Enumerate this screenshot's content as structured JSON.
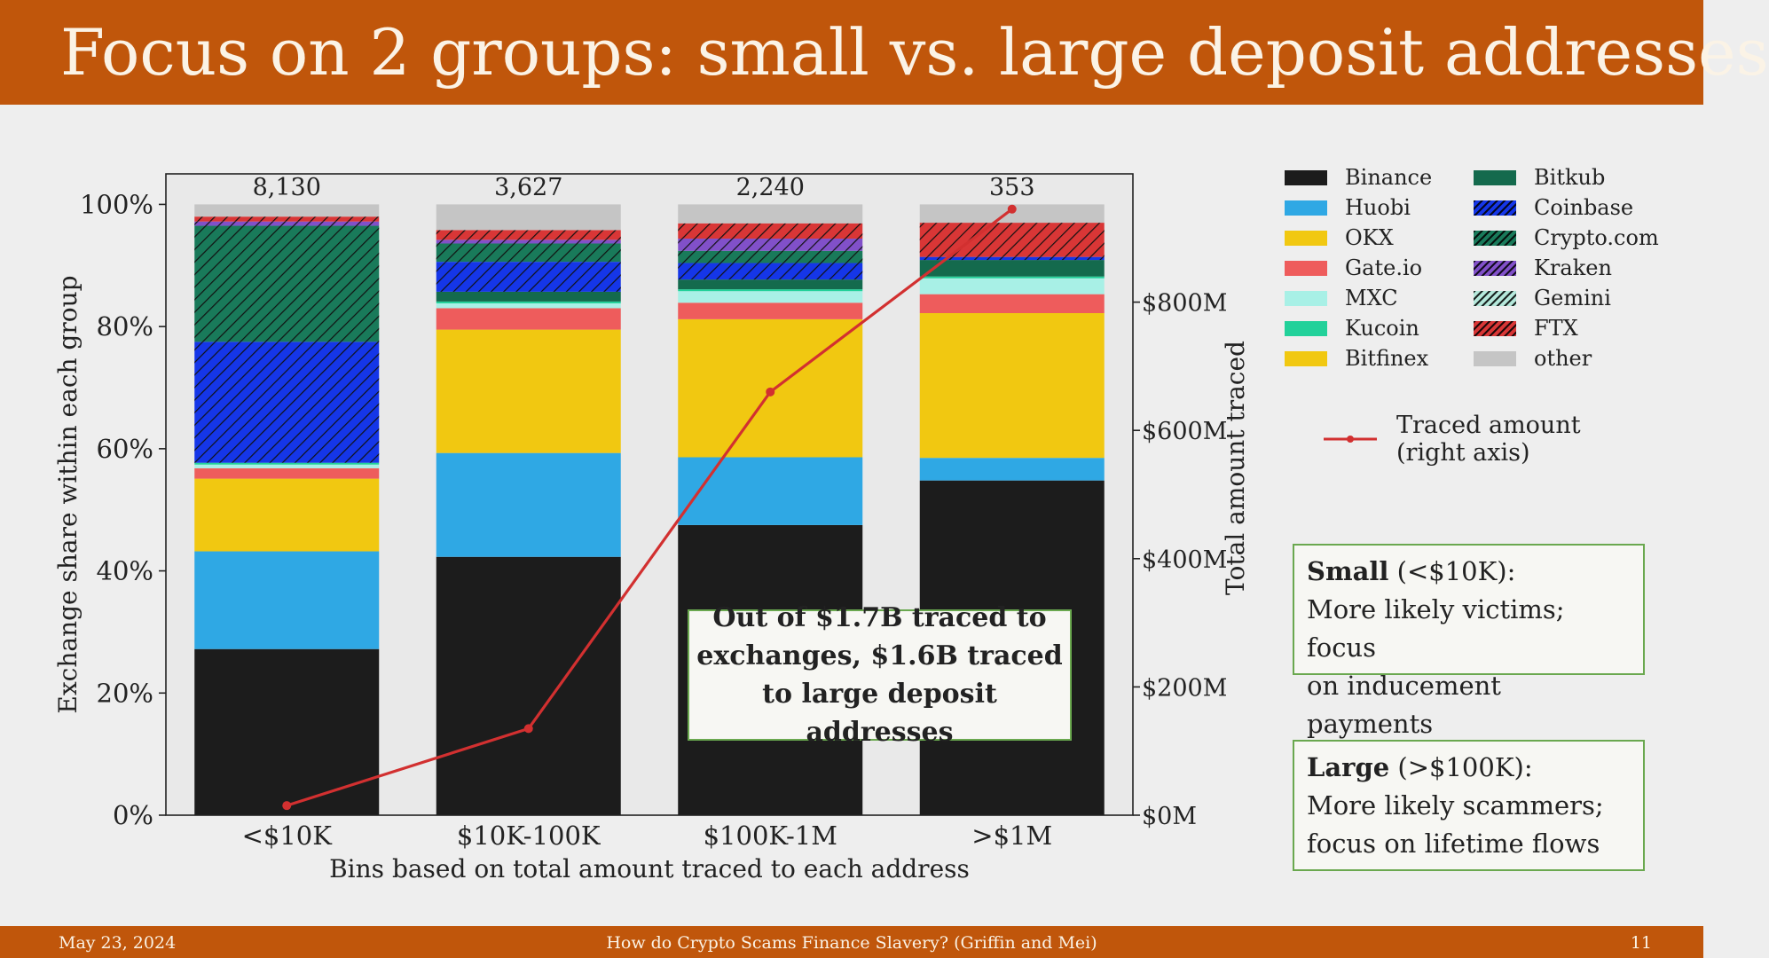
{
  "slide": {
    "title": "Focus on 2 groups: small vs. large deposit addresses",
    "footer": {
      "date": "May 23, 2024",
      "center": "How do Crypto Scams Finance Slavery? (Griffin and Mei)",
      "page": "11"
    },
    "callout_lines": [
      "Out of $1.7B traced to",
      "exchanges, $1.6B traced",
      "to large deposit addresses"
    ],
    "small_box": {
      "heading": "Small",
      "range": " (<$10K):",
      "lines": [
        "More likely victims; focus",
        "on inducement payments"
      ]
    },
    "large_box": {
      "heading": "Large",
      "range": " (>$100K):",
      "lines": [
        "More likely scammers;",
        "focus on lifetime flows"
      ]
    }
  },
  "chart_data": {
    "type": "bar",
    "stacked": true,
    "categories": [
      "<$10K",
      "$10K-100K",
      "$100K-1M",
      ">$1M"
    ],
    "bar_counts": [
      "8,130",
      "3,627",
      "2,240",
      "353"
    ],
    "xlabel": "Bins based on total amount traced to each address",
    "ylabel": "Exchange share within each group",
    "ylim": [
      0,
      105
    ],
    "yticks": [
      0,
      20,
      40,
      60,
      80,
      100
    ],
    "ytick_labels": [
      "0%",
      "20%",
      "40%",
      "60%",
      "80%",
      "100%"
    ],
    "y2label": "Total amount traced",
    "y2lim": [
      0,
      1000
    ],
    "y2ticks": [
      0,
      200,
      400,
      600,
      800
    ],
    "y2tick_labels": [
      "$0M",
      "$200M",
      "$400M",
      "$600M",
      "$800M"
    ],
    "series": [
      {
        "name": "Binance",
        "color": "#1c1c1c",
        "pattern": "none",
        "values": [
          27.2,
          42.3,
          47.5,
          54.8
        ]
      },
      {
        "name": "Huobi",
        "color": "#2fa8e4",
        "pattern": "none",
        "values": [
          16.0,
          17.0,
          11.1,
          3.7
        ]
      },
      {
        "name": "OKX",
        "color": "#f1c811",
        "pattern": "none",
        "values": [
          11.9,
          20.2,
          22.6,
          23.7
        ]
      },
      {
        "name": "Gate.io",
        "color": "#ee5c5c",
        "pattern": "none",
        "values": [
          1.7,
          3.5,
          2.7,
          3.1
        ]
      },
      {
        "name": "MXC",
        "color": "#a8f0e6",
        "pattern": "none",
        "values": [
          0.6,
          0.8,
          1.9,
          2.6
        ]
      },
      {
        "name": "Kucoin",
        "color": "#22d19a",
        "pattern": "none",
        "values": [
          0.3,
          0.3,
          0.3,
          0.3
        ]
      },
      {
        "name": "Bitfinex",
        "color": "#f1c811",
        "pattern": "none",
        "values": [
          0.0,
          0.0,
          0.0,
          0.0
        ]
      },
      {
        "name": "Bitkub",
        "color": "#146a4d",
        "pattern": "none",
        "values": [
          0.0,
          1.6,
          1.6,
          2.7
        ]
      },
      {
        "name": "Coinbase",
        "color": "#1536e8",
        "pattern": "hatch",
        "values": [
          19.8,
          4.9,
          2.7,
          0.5
        ]
      },
      {
        "name": "Crypto.com",
        "color": "#197a5a",
        "pattern": "hatch",
        "values": [
          19.0,
          3.0,
          2.0,
          0.0
        ]
      },
      {
        "name": "Kraken",
        "color": "#8150c9",
        "pattern": "hatch",
        "values": [
          0.7,
          0.6,
          2.0,
          0.0
        ]
      },
      {
        "name": "Gemini",
        "color": "#b5e8db",
        "pattern": "hatch",
        "values": [
          0.0,
          0.0,
          0.0,
          0.0
        ]
      },
      {
        "name": "FTX",
        "color": "#d93636",
        "pattern": "hatch",
        "values": [
          0.8,
          1.6,
          2.5,
          5.6
        ]
      },
      {
        "name": "other",
        "color": "#c5c5c5",
        "pattern": "none",
        "values": [
          2.0,
          4.2,
          3.1,
          3.0
        ]
      }
    ],
    "line": {
      "name": "Traced amount (right axis)",
      "color": "#d23030",
      "values": [
        15,
        135,
        660,
        945
      ]
    },
    "legend": {
      "columns": [
        [
          "Binance",
          "Huobi",
          "OKX",
          "Gate.io",
          "MXC",
          "Kucoin",
          "Bitfinex"
        ],
        [
          "Bitkub",
          "Coinbase",
          "Crypto.com",
          "Kraken",
          "Gemini",
          "FTX",
          "other"
        ]
      ],
      "line_label_lines": [
        "Traced amount",
        "(right axis)"
      ],
      "placement": "right"
    }
  }
}
